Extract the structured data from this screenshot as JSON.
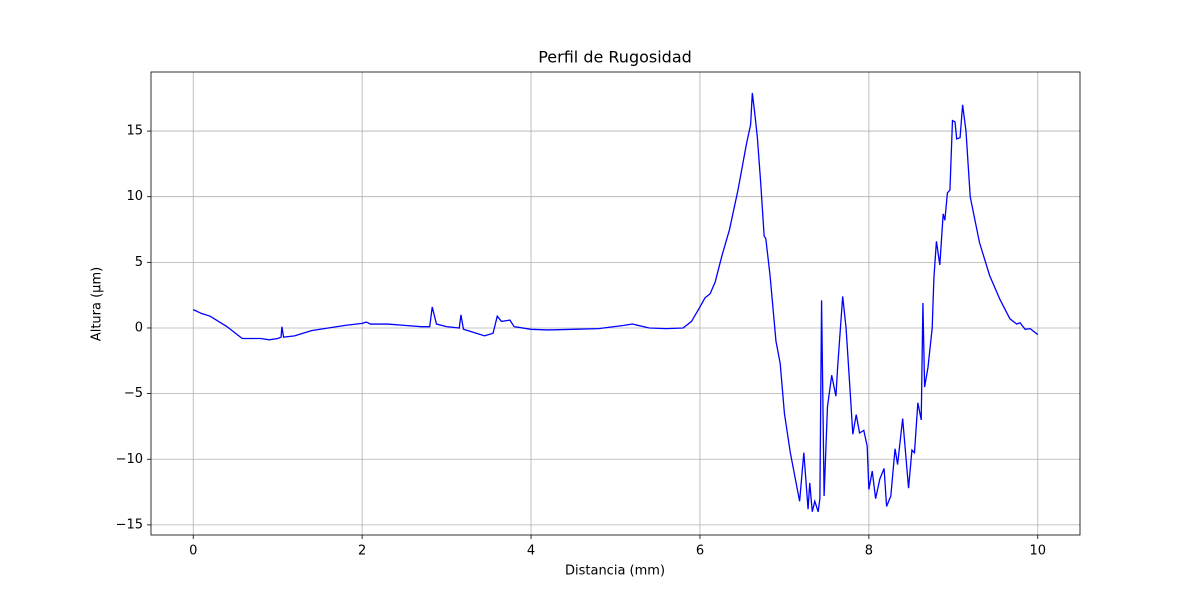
{
  "chart_data": {
    "type": "line",
    "title": "Perfil de Rugosidad",
    "x_label": "Distancia (mm)",
    "y_label": "Altura (µm)",
    "xlim": [
      -0.5,
      10.5
    ],
    "ylim": [
      -15.77,
      19.5
    ],
    "xticks": [
      0,
      2,
      4,
      6,
      8,
      10
    ],
    "yticks": [
      {
        "value": -15,
        "label": "−15"
      },
      {
        "value": -10,
        "label": "−10"
      },
      {
        "value": -5,
        "label": "−5"
      },
      0,
      5,
      10,
      15
    ],
    "grid": true,
    "series": [
      {
        "color": "#0000ff",
        "x": [
          0,
          0.1,
          0.2,
          0.3,
          0.4,
          0.5,
          0.58,
          0.7,
          0.8,
          0.9,
          1.0,
          1.04,
          1.05,
          1.07,
          1.2,
          1.4,
          1.6,
          1.8,
          2.0,
          2.05,
          2.1,
          2.3,
          2.5,
          2.7,
          2.8,
          2.83,
          2.88,
          3.0,
          3.15,
          3.17,
          3.2,
          3.3,
          3.45,
          3.55,
          3.6,
          3.65,
          3.75,
          3.8,
          4.0,
          4.2,
          4.5,
          4.8,
          5.1,
          5.2,
          5.4,
          5.6,
          5.8,
          5.9,
          6.0,
          6.06,
          6.12,
          6.18,
          6.26,
          6.35,
          6.45,
          6.55,
          6.6,
          6.62,
          6.65,
          6.68,
          6.72,
          6.76,
          6.78,
          6.83,
          6.9,
          6.95,
          7.0,
          7.07,
          7.18,
          7.23,
          7.28,
          7.3,
          7.33,
          7.36,
          7.4,
          7.42,
          7.44,
          7.47,
          7.51,
          7.56,
          7.61,
          7.63,
          7.69,
          7.73,
          7.78,
          7.81,
          7.85,
          7.89,
          7.94,
          7.98,
          8.0,
          8.04,
          8.08,
          8.13,
          8.18,
          8.21,
          8.26,
          8.31,
          8.34,
          8.4,
          8.47,
          8.51,
          8.54,
          8.58,
          8.62,
          8.64,
          8.66,
          8.7,
          8.75,
          8.77,
          8.8,
          8.84,
          8.88,
          8.9,
          8.93,
          8.96,
          8.99,
          9.02,
          9.04,
          9.08,
          9.11,
          9.15,
          9.2,
          9.31,
          9.43,
          9.55,
          9.67,
          9.75,
          9.79,
          9.85,
          9.91,
          10.0
        ],
        "values": [
          1.4,
          1.1,
          0.9,
          0.5,
          0.1,
          -0.4,
          -0.8,
          -0.8,
          -0.8,
          -0.9,
          -0.8,
          -0.7,
          0.1,
          -0.7,
          -0.6,
          -0.2,
          0,
          0.2,
          0.35,
          0.45,
          0.3,
          0.3,
          0.2,
          0.1,
          0.1,
          1.6,
          0.3,
          0.1,
          0.0,
          1.0,
          -0.1,
          -0.3,
          -0.6,
          -0.4,
          0.9,
          0.5,
          0.6,
          0.1,
          -0.1,
          -0.15,
          -0.1,
          -0.05,
          0.2,
          0.3,
          0.0,
          -0.05,
          0.0,
          0.5,
          1.6,
          2.3,
          2.6,
          3.5,
          5.5,
          7.5,
          10.5,
          14,
          15.5,
          17.9,
          16.3,
          14.5,
          11,
          7,
          6.8,
          4,
          -1,
          -2.7,
          -6.5,
          -9.5,
          -13.2,
          -9.5,
          -13.8,
          -11.8,
          -14,
          -13.2,
          -14,
          -13,
          2.1,
          -12.8,
          -6,
          -3.6,
          -5.2,
          -3,
          2.4,
          0,
          -5,
          -8.1,
          -6.6,
          -8,
          -7.8,
          -9,
          -12.3,
          -10.9,
          -13,
          -11.5,
          -10.7,
          -13.6,
          -12.8,
          -9.2,
          -10.4,
          -6.9,
          -12.2,
          -9.3,
          -9.5,
          -5.7,
          -7,
          1.9,
          -4.5,
          -3,
          0,
          3.8,
          6.6,
          4.8,
          8.7,
          8.2,
          10.3,
          10.5,
          15.8,
          15.7,
          14.4,
          14.5,
          17,
          15,
          10,
          6.5,
          4,
          2.2,
          0.7,
          0.3,
          0.4,
          -0.1,
          -0.05,
          -0.5
        ]
      }
    ]
  }
}
